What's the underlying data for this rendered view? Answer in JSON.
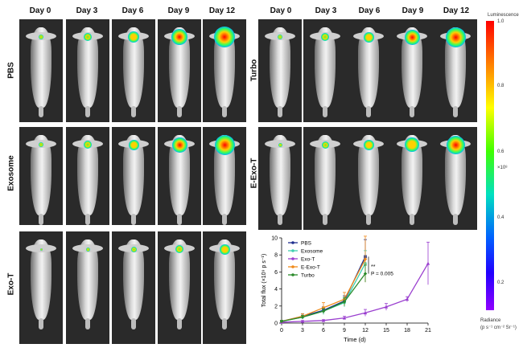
{
  "days": [
    "Day 0",
    "Day 3",
    "Day 6",
    "Day 9",
    "Day 12"
  ],
  "groups_left": [
    "PBS",
    "Exosome",
    "Exo-T"
  ],
  "groups_right": [
    "Turbo",
    "E-Exo-T"
  ],
  "colorbar": {
    "title": "Luminescence",
    "ticks": [
      "1.0",
      "0.8",
      "0.6",
      "0.4",
      "0.2"
    ],
    "multiplier": "×10⁸",
    "unit_title": "Radiance",
    "unit": "(p s⁻¹ cm⁻² Sr⁻¹)"
  },
  "chart_data": {
    "type": "line",
    "xlabel": "Time (d)",
    "ylabel": "Total flux (×10⁹ p s⁻¹)",
    "xlim": [
      0,
      21
    ],
    "ylim": [
      0,
      10
    ],
    "xticks": [
      0,
      3,
      6,
      9,
      12,
      15,
      18,
      21
    ],
    "yticks": [
      0,
      2,
      4,
      6,
      8,
      10
    ],
    "annotation_star": "**",
    "annotation_p": "P = 0.005",
    "series": [
      {
        "name": "PBS",
        "color": "#1f2f8f",
        "marker": "square",
        "x": [
          0,
          3,
          6,
          9,
          12
        ],
        "y": [
          0.2,
          0.8,
          1.5,
          2.6,
          7.8
        ],
        "err": [
          0.1,
          0.3,
          0.4,
          0.6,
          2.0
        ]
      },
      {
        "name": "Exosome",
        "color": "#40d0b0",
        "marker": "circle",
        "x": [
          0,
          3,
          6,
          9,
          12
        ],
        "y": [
          0.2,
          0.7,
          1.4,
          2.4,
          7.0
        ],
        "err": [
          0.1,
          0.2,
          0.4,
          0.5,
          1.5
        ]
      },
      {
        "name": "Exo-T",
        "color": "#9a3fcf",
        "marker": "triangle",
        "x": [
          0,
          3,
          6,
          9,
          12,
          15,
          18,
          21
        ],
        "y": [
          0.1,
          0.2,
          0.3,
          0.6,
          1.2,
          1.9,
          2.8,
          7.0
        ],
        "err": [
          0.05,
          0.1,
          0.1,
          0.2,
          0.4,
          0.4,
          0.3,
          2.5
        ]
      },
      {
        "name": "E-Exo-T",
        "color": "#f08a1a",
        "marker": "diamond",
        "x": [
          0,
          3,
          6,
          9,
          12
        ],
        "y": [
          0.2,
          0.8,
          1.8,
          2.8,
          7.5
        ],
        "err": [
          0.1,
          0.3,
          0.6,
          0.8,
          2.7
        ]
      },
      {
        "name": "Turbo",
        "color": "#2a8a2a",
        "marker": "diamond",
        "x": [
          0,
          3,
          6,
          9,
          12
        ],
        "y": [
          0.2,
          0.7,
          1.4,
          2.5,
          5.8
        ],
        "err": [
          0.1,
          0.2,
          0.3,
          0.5,
          1.0
        ]
      }
    ]
  }
}
